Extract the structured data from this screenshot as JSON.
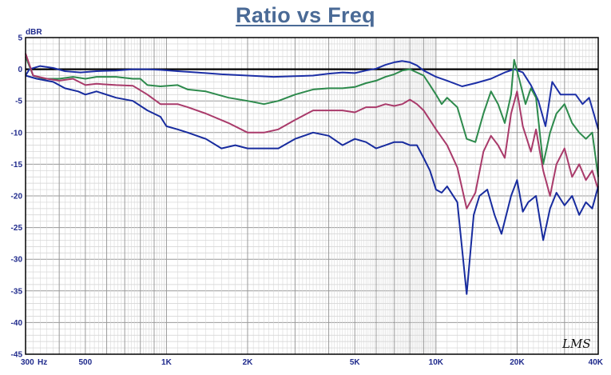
{
  "chart_data": {
    "type": "line",
    "title": "Ratio vs Freq",
    "ylabel": "dBR",
    "xscale": "log",
    "xlim": [
      300,
      40000
    ],
    "ylim": [
      -45,
      5
    ],
    "yticks": [
      5,
      0,
      -5,
      -10,
      -15,
      -20,
      -25,
      -30,
      -35,
      -40,
      -45
    ],
    "xticks": [
      {
        "value": 300,
        "label": "300"
      },
      {
        "value": 500,
        "label": "500"
      },
      {
        "value": 1000,
        "label": "1K"
      },
      {
        "value": 2000,
        "label": "2K"
      },
      {
        "value": 5000,
        "label": "5K"
      },
      {
        "value": 10000,
        "label": "10K"
      },
      {
        "value": 20000,
        "label": "20K"
      },
      {
        "value": 40000,
        "label": "40K"
      }
    ],
    "xunit": "Hz",
    "grid": true,
    "watermark": "LMS",
    "reference": {
      "y": 0,
      "color": "#000000"
    },
    "series": [
      {
        "color": "#1c2fa6",
        "points": [
          [
            300,
            -1
          ],
          [
            310,
            0
          ],
          [
            340,
            0.5
          ],
          [
            380,
            0.2
          ],
          [
            420,
            -0.3
          ],
          [
            480,
            -0.5
          ],
          [
            550,
            -0.3
          ],
          [
            650,
            -0.2
          ],
          [
            750,
            0
          ],
          [
            850,
            0
          ],
          [
            950,
            -0.1
          ],
          [
            1100,
            -0.3
          ],
          [
            1300,
            -0.5
          ],
          [
            1600,
            -0.8
          ],
          [
            2000,
            -1
          ],
          [
            2500,
            -1.2
          ],
          [
            3000,
            -1.1
          ],
          [
            3500,
            -1
          ],
          [
            4000,
            -0.7
          ],
          [
            4500,
            -0.5
          ],
          [
            5000,
            -0.6
          ],
          [
            5500,
            -0.2
          ],
          [
            6000,
            0.1
          ],
          [
            6500,
            0.7
          ],
          [
            7000,
            1.1
          ],
          [
            7500,
            1.3
          ],
          [
            8000,
            1.1
          ],
          [
            8500,
            0.6
          ],
          [
            9000,
            -0.2
          ],
          [
            10000,
            -1.2
          ],
          [
            11000,
            -1.8
          ],
          [
            12500,
            -2.7
          ],
          [
            14000,
            -2.2
          ],
          [
            16000,
            -1.5
          ],
          [
            18000,
            -0.5
          ],
          [
            19500,
            0
          ],
          [
            21000,
            -0.5
          ],
          [
            22500,
            -2.5
          ],
          [
            24000,
            -5
          ],
          [
            25500,
            -9
          ],
          [
            27000,
            -2
          ],
          [
            29000,
            -4
          ],
          [
            31000,
            -4
          ],
          [
            33000,
            -4
          ],
          [
            35000,
            -5.5
          ],
          [
            37000,
            -4.5
          ],
          [
            38500,
            -7
          ],
          [
            40000,
            -9.5
          ]
        ]
      },
      {
        "color": "#2d8a4c",
        "points": [
          [
            300,
            2
          ],
          [
            320,
            -1
          ],
          [
            350,
            -1.5
          ],
          [
            400,
            -1.5
          ],
          [
            450,
            -1.2
          ],
          [
            500,
            -1.5
          ],
          [
            550,
            -1.2
          ],
          [
            650,
            -1.2
          ],
          [
            750,
            -1.5
          ],
          [
            800,
            -1.5
          ],
          [
            850,
            -2.5
          ],
          [
            950,
            -2.7
          ],
          [
            1100,
            -2.5
          ],
          [
            1200,
            -3.2
          ],
          [
            1400,
            -3.5
          ],
          [
            1700,
            -4.5
          ],
          [
            2000,
            -5
          ],
          [
            2300,
            -5.5
          ],
          [
            2600,
            -5
          ],
          [
            3000,
            -4
          ],
          [
            3500,
            -3.2
          ],
          [
            4000,
            -3
          ],
          [
            4500,
            -3
          ],
          [
            5000,
            -2.8
          ],
          [
            5500,
            -2.2
          ],
          [
            6000,
            -1.8
          ],
          [
            6500,
            -1.2
          ],
          [
            7000,
            -0.8
          ],
          [
            7500,
            -0.2
          ],
          [
            8000,
            0
          ],
          [
            8500,
            -0.5
          ],
          [
            9000,
            -1
          ],
          [
            9500,
            -2.5
          ],
          [
            10000,
            -4
          ],
          [
            10500,
            -5.5
          ],
          [
            11000,
            -4.5
          ],
          [
            12000,
            -6
          ],
          [
            13000,
            -11
          ],
          [
            14000,
            -11.5
          ],
          [
            15000,
            -7
          ],
          [
            16000,
            -3.5
          ],
          [
            17000,
            -5.5
          ],
          [
            18000,
            -8.5
          ],
          [
            19000,
            -4
          ],
          [
            19500,
            1.5
          ],
          [
            20500,
            -2
          ],
          [
            21500,
            -5.5
          ],
          [
            22500,
            -3
          ],
          [
            23500,
            -4.5
          ],
          [
            25000,
            -15
          ],
          [
            26500,
            -10
          ],
          [
            28000,
            -7
          ],
          [
            30000,
            -5.5
          ],
          [
            32000,
            -8.5
          ],
          [
            34000,
            -10
          ],
          [
            36000,
            -11
          ],
          [
            38000,
            -10
          ],
          [
            40000,
            -17
          ]
        ]
      },
      {
        "color": "#a93a6a",
        "points": [
          [
            300,
            2.5
          ],
          [
            320,
            -1
          ],
          [
            360,
            -1.5
          ],
          [
            400,
            -1.8
          ],
          [
            450,
            -1.5
          ],
          [
            500,
            -2.5
          ],
          [
            550,
            -2.3
          ],
          [
            650,
            -2.5
          ],
          [
            750,
            -2.6
          ],
          [
            850,
            -4
          ],
          [
            950,
            -5.5
          ],
          [
            1100,
            -5.5
          ],
          [
            1200,
            -6
          ],
          [
            1400,
            -7
          ],
          [
            1700,
            -8.5
          ],
          [
            2000,
            -10
          ],
          [
            2300,
            -10
          ],
          [
            2600,
            -9.5
          ],
          [
            3000,
            -8
          ],
          [
            3500,
            -6.5
          ],
          [
            4000,
            -6.5
          ],
          [
            4500,
            -6.5
          ],
          [
            5000,
            -6.8
          ],
          [
            5500,
            -6
          ],
          [
            6000,
            -6
          ],
          [
            6500,
            -5.5
          ],
          [
            7000,
            -5.8
          ],
          [
            7500,
            -5.5
          ],
          [
            8000,
            -4.8
          ],
          [
            8500,
            -5.5
          ],
          [
            9000,
            -6.5
          ],
          [
            10000,
            -9.5
          ],
          [
            11000,
            -12
          ],
          [
            12000,
            -15.5
          ],
          [
            13000,
            -22
          ],
          [
            14000,
            -19.5
          ],
          [
            15000,
            -13
          ],
          [
            16000,
            -10.5
          ],
          [
            17000,
            -12
          ],
          [
            18000,
            -14
          ],
          [
            19000,
            -7
          ],
          [
            20000,
            -3.5
          ],
          [
            21000,
            -9
          ],
          [
            22500,
            -13
          ],
          [
            23500,
            -9.5
          ],
          [
            25000,
            -16
          ],
          [
            26500,
            -20
          ],
          [
            28000,
            -15
          ],
          [
            30000,
            -12.5
          ],
          [
            32000,
            -17
          ],
          [
            34000,
            -15
          ],
          [
            36000,
            -17.5
          ],
          [
            38000,
            -16
          ],
          [
            40000,
            -19
          ]
        ]
      },
      {
        "color": "#172b9e",
        "points": [
          [
            300,
            -1
          ],
          [
            330,
            -1.5
          ],
          [
            380,
            -2
          ],
          [
            420,
            -3
          ],
          [
            470,
            -3.5
          ],
          [
            500,
            -4
          ],
          [
            550,
            -3.5
          ],
          [
            650,
            -4.5
          ],
          [
            750,
            -5
          ],
          [
            850,
            -6.5
          ],
          [
            950,
            -7.5
          ],
          [
            1000,
            -9
          ],
          [
            1100,
            -9.5
          ],
          [
            1200,
            -10
          ],
          [
            1400,
            -11
          ],
          [
            1600,
            -12.5
          ],
          [
            1800,
            -12
          ],
          [
            2000,
            -12.5
          ],
          [
            2300,
            -12.5
          ],
          [
            2600,
            -12.5
          ],
          [
            3000,
            -11
          ],
          [
            3500,
            -10
          ],
          [
            4000,
            -10.5
          ],
          [
            4500,
            -12
          ],
          [
            5000,
            -11
          ],
          [
            5500,
            -11.5
          ],
          [
            6000,
            -12.5
          ],
          [
            6500,
            -12
          ],
          [
            7000,
            -11.5
          ],
          [
            7500,
            -11.5
          ],
          [
            8000,
            -12
          ],
          [
            8500,
            -12
          ],
          [
            9000,
            -14
          ],
          [
            9500,
            -16
          ],
          [
            10000,
            -19
          ],
          [
            10500,
            -19.5
          ],
          [
            11000,
            -18.5
          ],
          [
            12000,
            -21
          ],
          [
            13000,
            -35.5
          ],
          [
            13800,
            -23
          ],
          [
            14500,
            -20
          ],
          [
            15500,
            -19
          ],
          [
            16500,
            -23
          ],
          [
            17500,
            -26
          ],
          [
            19000,
            -20
          ],
          [
            20000,
            -17.5
          ],
          [
            21000,
            -22.5
          ],
          [
            22000,
            -21
          ],
          [
            23500,
            -20
          ],
          [
            25000,
            -27
          ],
          [
            26500,
            -22
          ],
          [
            28000,
            -19.5
          ],
          [
            30000,
            -21.5
          ],
          [
            32000,
            -20
          ],
          [
            34000,
            -23
          ],
          [
            36000,
            -21
          ],
          [
            38000,
            -22
          ],
          [
            40000,
            -18.5
          ]
        ]
      }
    ]
  }
}
